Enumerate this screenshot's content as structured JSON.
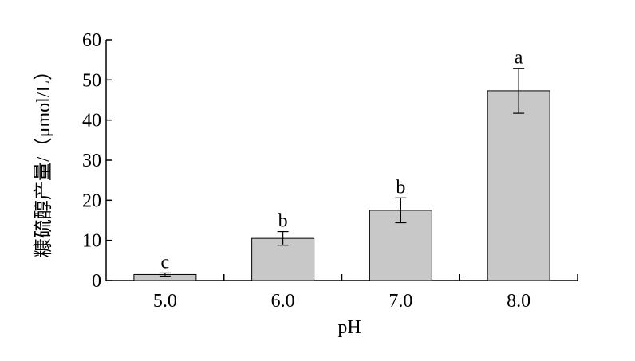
{
  "chart_data": {
    "type": "bar",
    "categories": [
      "5.0",
      "6.0",
      "7.0",
      "8.0"
    ],
    "values": [
      1.5,
      10.5,
      17.5,
      47.3
    ],
    "errors": [
      0.4,
      1.7,
      3.1,
      5.6
    ],
    "significance": [
      "c",
      "b",
      "b",
      "a"
    ],
    "xlabel": "pH",
    "ylabel": "糠硫醇产量/（μmol/L）",
    "ylim": [
      0,
      60
    ],
    "yticks": [
      0,
      10,
      20,
      30,
      40,
      50,
      60
    ],
    "grid": false,
    "bar_color": "#c8c8c8"
  }
}
